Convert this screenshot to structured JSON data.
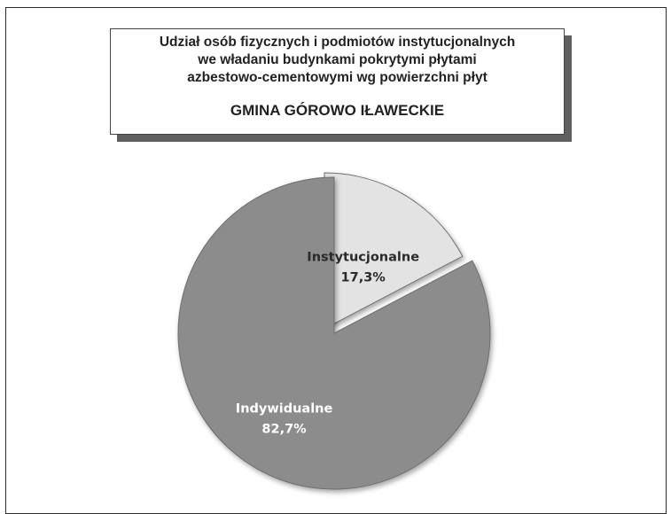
{
  "header": {
    "title_lines": [
      "Udział osób fizycznych i podmiotów instytucjonalnych",
      "we władaniu budynkami pokrytymi płytami",
      "azbestowo-cementowymi wg powierzchni płyt"
    ],
    "subtitle": "GMINA GÓROWO IŁAWECKIE"
  },
  "chart_data": {
    "type": "pie",
    "title": "Udział osób fizycznych i podmiotów instytucjonalnych we władaniu budynkami pokrytymi płytami azbestowo-cementowymi wg powierzchni płyt",
    "subtitle": "GMINA GÓROWO IŁAWECKIE",
    "slices": [
      {
        "label": "Instytucjonalne",
        "value": 17.3,
        "value_label": "17,3%",
        "color": "#e3e3e3",
        "text_color": "#2a2a2a"
      },
      {
        "label": "Indywidualne",
        "value": 82.7,
        "value_label": "82,7%",
        "color": "#8c8c8c",
        "text_color": "#ffffff"
      }
    ]
  }
}
